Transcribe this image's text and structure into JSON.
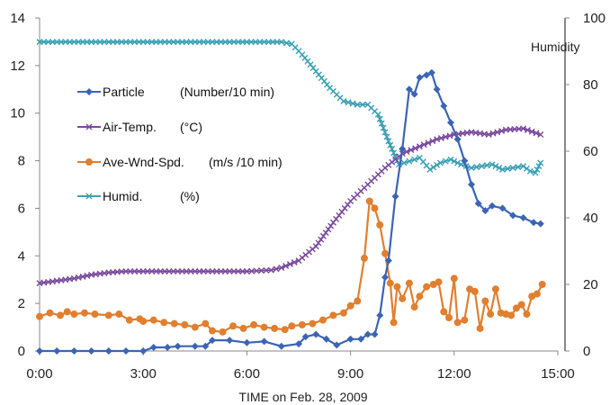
{
  "chart_data": {
    "type": "line",
    "x_unit": "hours",
    "xlabel": "TIME on Feb. 28, 2009",
    "y2label": "Humidity",
    "xlim": [
      0,
      15
    ],
    "ylim": [
      0,
      14
    ],
    "y2lim": [
      0,
      100
    ],
    "grid": false,
    "legend_position": "upper-left",
    "x_ticks": [
      "0:00",
      "3:00",
      "6:00",
      "9:00",
      "12:00",
      "15:00"
    ],
    "y_ticks": [
      "0",
      "2",
      "4",
      "6",
      "8",
      "10",
      "12",
      "14"
    ],
    "y2_ticks": [
      "0",
      "20",
      "40",
      "60",
      "80",
      "100"
    ],
    "series": [
      {
        "name": "Particle",
        "unit": "(Number/10 min)",
        "axis": "left",
        "color": "#3c64b4",
        "marker": "diamond",
        "points": [
          [
            0,
            0
          ],
          [
            0.5,
            0
          ],
          [
            1,
            0
          ],
          [
            1.5,
            0
          ],
          [
            2,
            0
          ],
          [
            2.5,
            0
          ],
          [
            3,
            0
          ],
          [
            3.3,
            0.15
          ],
          [
            3.7,
            0.15
          ],
          [
            4,
            0.2
          ],
          [
            4.5,
            0.2
          ],
          [
            4.8,
            0.2
          ],
          [
            5,
            0.45
          ],
          [
            5.5,
            0.45
          ],
          [
            6,
            0.35
          ],
          [
            6.5,
            0.4
          ],
          [
            7,
            0.2
          ],
          [
            7.5,
            0.3
          ],
          [
            7.7,
            0.6
          ],
          [
            8,
            0.7
          ],
          [
            8.3,
            0.5
          ],
          [
            8.6,
            0.25
          ],
          [
            9,
            0.5
          ],
          [
            9.3,
            0.5
          ],
          [
            9.5,
            0.7
          ],
          [
            9.7,
            0.7
          ],
          [
            9.85,
            1.5
          ],
          [
            10,
            3.1
          ],
          [
            10.1,
            3.8
          ],
          [
            10.3,
            6.5
          ],
          [
            10.5,
            8.5
          ],
          [
            10.7,
            11
          ],
          [
            10.85,
            10.8
          ],
          [
            11,
            11.5
          ],
          [
            11.2,
            11.6
          ],
          [
            11.35,
            11.7
          ],
          [
            11.5,
            11
          ],
          [
            11.7,
            10.3
          ],
          [
            11.9,
            9.6
          ],
          [
            12.1,
            8.9
          ],
          [
            12.3,
            8
          ],
          [
            12.5,
            7
          ],
          [
            12.7,
            6.2
          ],
          [
            12.9,
            5.9
          ],
          [
            13.1,
            6.1
          ],
          [
            13.4,
            6
          ],
          [
            13.7,
            5.7
          ],
          [
            14,
            5.6
          ],
          [
            14.3,
            5.4
          ],
          [
            14.5,
            5.35
          ]
        ]
      },
      {
        "name": "Air-Temp.",
        "unit": "(°C)",
        "axis": "left",
        "color": "#7a4a9e",
        "marker": "x",
        "points": [
          [
            0,
            2.85
          ],
          [
            0.5,
            2.95
          ],
          [
            1,
            3.05
          ],
          [
            1.5,
            3.2
          ],
          [
            2,
            3.3
          ],
          [
            2.5,
            3.35
          ],
          [
            3,
            3.35
          ],
          [
            4,
            3.35
          ],
          [
            5,
            3.35
          ],
          [
            6,
            3.35
          ],
          [
            6.7,
            3.4
          ],
          [
            7,
            3.5
          ],
          [
            7.5,
            3.8
          ],
          [
            8,
            4.4
          ],
          [
            8.5,
            5.4
          ],
          [
            9,
            6.3
          ],
          [
            9.5,
            7
          ],
          [
            10,
            7.7
          ],
          [
            10.5,
            8.3
          ],
          [
            11,
            8.6
          ],
          [
            11.5,
            8.9
          ],
          [
            12,
            9.1
          ],
          [
            12.5,
            9.2
          ],
          [
            13,
            9.1
          ],
          [
            13.5,
            9.3
          ],
          [
            14,
            9.35
          ],
          [
            14.5,
            9.1
          ]
        ]
      },
      {
        "name": "Ave-Wnd-Spd.",
        "unit": "(m/s  /10 min)",
        "axis": "left",
        "color": "#e07f30",
        "marker": "circle",
        "points": [
          [
            0,
            1.45
          ],
          [
            0.3,
            1.6
          ],
          [
            0.6,
            1.5
          ],
          [
            0.8,
            1.65
          ],
          [
            1,
            1.55
          ],
          [
            1.3,
            1.6
          ],
          [
            1.6,
            1.55
          ],
          [
            2,
            1.5
          ],
          [
            2.3,
            1.55
          ],
          [
            2.6,
            1.3
          ],
          [
            2.9,
            1.35
          ],
          [
            3,
            1.25
          ],
          [
            3.3,
            1.3
          ],
          [
            3.6,
            1.2
          ],
          [
            3.9,
            1.15
          ],
          [
            4.2,
            1.1
          ],
          [
            4.5,
            1
          ],
          [
            4.8,
            1.15
          ],
          [
            5,
            0.85
          ],
          [
            5.3,
            0.8
          ],
          [
            5.6,
            1.05
          ],
          [
            5.9,
            0.95
          ],
          [
            6.2,
            1.1
          ],
          [
            6.5,
            1
          ],
          [
            6.8,
            0.95
          ],
          [
            7.1,
            0.9
          ],
          [
            7.3,
            1.05
          ],
          [
            7.6,
            1.1
          ],
          [
            7.9,
            1.15
          ],
          [
            8.2,
            1.3
          ],
          [
            8.5,
            1.5
          ],
          [
            8.8,
            1.6
          ],
          [
            9,
            1.9
          ],
          [
            9.2,
            2.1
          ],
          [
            9.4,
            3.9
          ],
          [
            9.55,
            6.3
          ],
          [
            9.7,
            6
          ],
          [
            9.85,
            5.3
          ],
          [
            10,
            4.1
          ],
          [
            10.15,
            2.85
          ],
          [
            10.25,
            1.2
          ],
          [
            10.35,
            2.7
          ],
          [
            10.5,
            2.2
          ],
          [
            10.7,
            2.85
          ],
          [
            10.85,
            1.85
          ],
          [
            11,
            2.3
          ],
          [
            11.2,
            2.7
          ],
          [
            11.4,
            2.8
          ],
          [
            11.55,
            2.9
          ],
          [
            11.7,
            1.65
          ],
          [
            11.85,
            1.4
          ],
          [
            12,
            3.05
          ],
          [
            12.1,
            1.2
          ],
          [
            12.3,
            1.3
          ],
          [
            12.45,
            2.6
          ],
          [
            12.6,
            2.5
          ],
          [
            12.75,
            0.95
          ],
          [
            12.9,
            2.1
          ],
          [
            13.05,
            1.55
          ],
          [
            13.2,
            2.6
          ],
          [
            13.35,
            1.6
          ],
          [
            13.5,
            1.55
          ],
          [
            13.65,
            1.5
          ],
          [
            13.8,
            1.8
          ],
          [
            13.95,
            1.95
          ],
          [
            14.1,
            1.55
          ],
          [
            14.25,
            2.3
          ],
          [
            14.4,
            2.4
          ],
          [
            14.55,
            2.8
          ]
        ]
      },
      {
        "name": "Humid.",
        "unit": "(%)",
        "axis": "right",
        "color": "#3aa0b4",
        "marker": "x",
        "points": [
          [
            0,
            92.8
          ],
          [
            1,
            92.8
          ],
          [
            2,
            92.8
          ],
          [
            3,
            92.8
          ],
          [
            4,
            92.8
          ],
          [
            5,
            92.8
          ],
          [
            6,
            92.8
          ],
          [
            7,
            92.8
          ],
          [
            7.3,
            92.2
          ],
          [
            7.6,
            89
          ],
          [
            8,
            84
          ],
          [
            8.4,
            79
          ],
          [
            8.8,
            75
          ],
          [
            9.2,
            74
          ],
          [
            9.5,
            74
          ],
          [
            9.8,
            71
          ],
          [
            10.1,
            63
          ],
          [
            10.4,
            56
          ],
          [
            10.7,
            57
          ],
          [
            11,
            58
          ],
          [
            11.3,
            54.5
          ],
          [
            11.6,
            56.5
          ],
          [
            11.9,
            57.5
          ],
          [
            12.2,
            56
          ],
          [
            12.5,
            55
          ],
          [
            12.8,
            55.5
          ],
          [
            13.1,
            56
          ],
          [
            13.4,
            54.5
          ],
          [
            13.7,
            55
          ],
          [
            14,
            55.5
          ],
          [
            14.2,
            54
          ],
          [
            14.35,
            53.5
          ],
          [
            14.5,
            56.5
          ]
        ]
      }
    ]
  }
}
